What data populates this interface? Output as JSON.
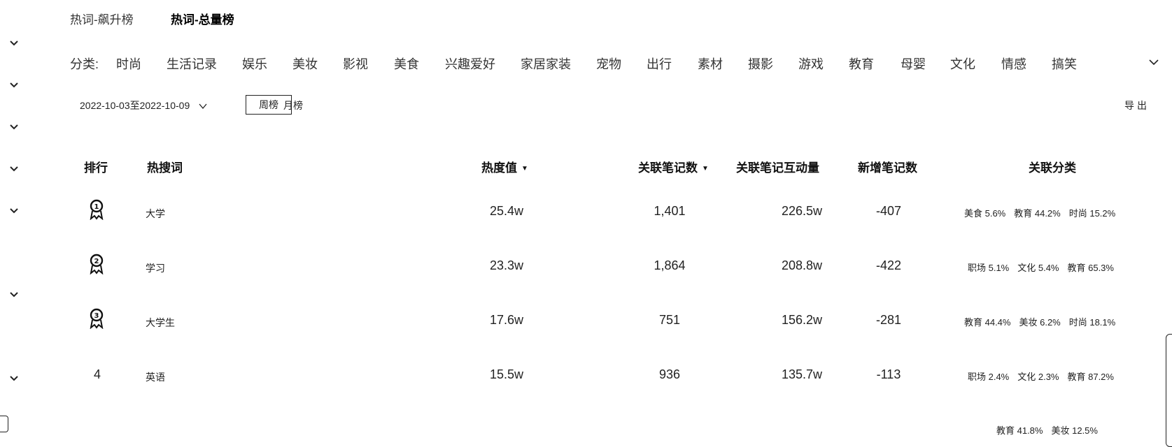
{
  "tabs": [
    {
      "label": "热词-飙升榜",
      "active": false
    },
    {
      "label": "热词-总量榜",
      "active": true
    }
  ],
  "categories": {
    "label": "分类:",
    "items": [
      "时尚",
      "生活记录",
      "娱乐",
      "美妆",
      "影视",
      "美食",
      "兴趣爱好",
      "家居家装",
      "宠物",
      "出行",
      "素材",
      "摄影",
      "游戏",
      "教育",
      "母婴",
      "文化",
      "情感",
      "搞笑"
    ]
  },
  "filters": {
    "date_range": "2022-10-03至2022-10-09",
    "week_label": "周榜",
    "month_label": "月榜",
    "export_label": "导出"
  },
  "table": {
    "headers": {
      "rank": "排行",
      "keyword": "热搜词",
      "heat": "热度值",
      "notes": "关联笔记数",
      "interactions": "关联笔记互动量",
      "new_notes": "新增笔记数",
      "categories": "关联分类"
    },
    "sort_icon": "caret-down-icon",
    "rows": [
      {
        "rank": "1",
        "keyword": "大学",
        "heat": "25.4w",
        "notes": "1,401",
        "interactions": "226.5w",
        "new_notes": "-407",
        "cats": [
          "美食 5.6%",
          "教育 44.2%",
          "时尚 15.2%"
        ]
      },
      {
        "rank": "2",
        "keyword": "学习",
        "heat": "23.3w",
        "notes": "1,864",
        "interactions": "208.8w",
        "new_notes": "-422",
        "cats": [
          "职场 5.1%",
          "文化 5.4%",
          "教育 65.3%"
        ]
      },
      {
        "rank": "3",
        "keyword": "大学生",
        "heat": "17.6w",
        "notes": "751",
        "interactions": "156.2w",
        "new_notes": "-281",
        "cats": [
          "教育 44.4%",
          "美妆 6.2%",
          "时尚 18.1%"
        ]
      },
      {
        "rank": "4",
        "keyword": "英语",
        "heat": "15.5w",
        "notes": "936",
        "interactions": "135.7w",
        "new_notes": "-113",
        "cats": [
          "职场 2.4%",
          "文化 2.3%",
          "教育 87.2%"
        ]
      },
      {
        "rank": "",
        "keyword": "",
        "heat": "",
        "notes": "",
        "interactions": "",
        "new_notes": "",
        "cats": [
          "教育 41.8%",
          "美妆 12.5%"
        ]
      }
    ]
  },
  "colors": {
    "text": "#222222",
    "border": "#222222",
    "background": "#ffffff"
  }
}
